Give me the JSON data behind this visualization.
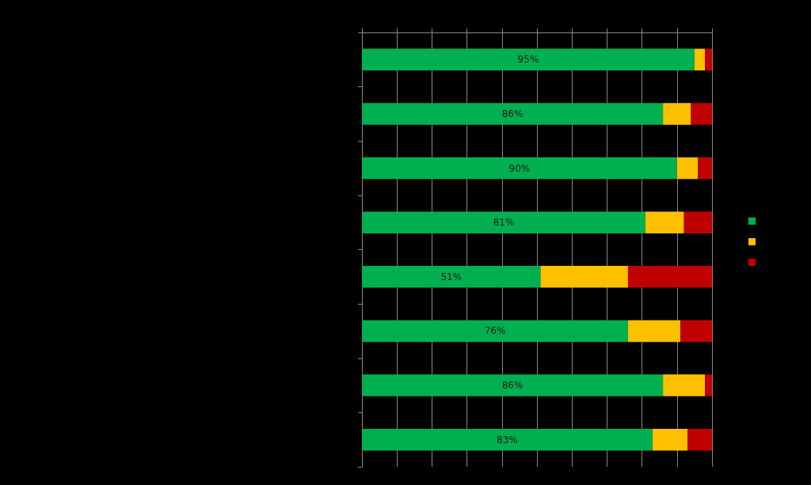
{
  "chart_data": {
    "type": "bar",
    "orientation": "horizontal",
    "stacked": true,
    "categories": [
      null,
      null,
      null,
      null,
      null,
      null,
      null,
      null
    ],
    "series": [
      {
        "color": "#00b050",
        "values": [
          95,
          86,
          90,
          81,
          51,
          76,
          86,
          83
        ],
        "value_labels": [
          "95%",
          "86%",
          "90%",
          "81%",
          "51%",
          "76%",
          "86%",
          "83%"
        ]
      },
      {
        "color": "#ffc000",
        "values": [
          3,
          8,
          6,
          11,
          25,
          15,
          12,
          10
        ]
      },
      {
        "color": "#c00000",
        "values": [
          2,
          6,
          4,
          8,
          24,
          9,
          2,
          7
        ]
      }
    ],
    "xlim": [
      0,
      100
    ],
    "xticks": [
      {
        "value": 0,
        "label": null
      },
      {
        "value": 10,
        "label": null
      },
      {
        "value": 20,
        "label": null
      },
      {
        "value": 30,
        "label": null
      },
      {
        "value": 40,
        "label": null
      },
      {
        "value": 50,
        "label": null
      },
      {
        "value": 60,
        "label": null
      },
      {
        "value": 70,
        "label": null
      },
      {
        "value": 80,
        "label": null
      },
      {
        "value": 90,
        "label": null
      },
      {
        "value": 100,
        "label": null
      }
    ],
    "grid": "x"
  }
}
